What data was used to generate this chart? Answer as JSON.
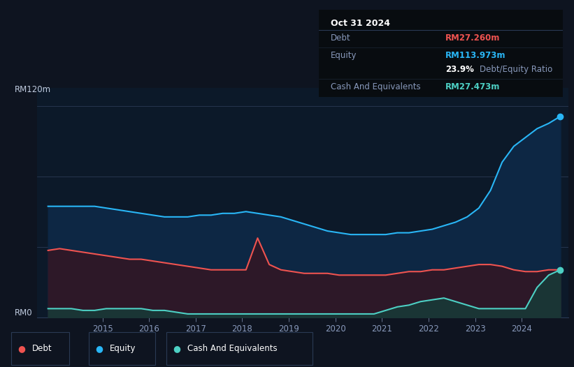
{
  "bg_color": "#0e1420",
  "chart_bg": "#0c1929",
  "tooltip": {
    "date": "Oct 31 2024",
    "debt_label": "Debt",
    "debt_value": "RM27.260m",
    "equity_label": "Equity",
    "equity_value": "RM113.973m",
    "ratio_value": "23.9%",
    "ratio_label": "Debt/Equity Ratio",
    "cash_label": "Cash And Equivalents",
    "cash_value": "RM27.473m"
  },
  "ylabel_top": "RM120m",
  "ylabel_bottom": "RM0",
  "equity_color": "#29b6f6",
  "debt_color": "#ef5350",
  "cash_color": "#4dd0c4",
  "equity_fill": "#0d2744",
  "debt_fill": "#2d1828",
  "cash_fill": "#1a3535",
  "years": [
    2013.83,
    2014.08,
    2014.33,
    2014.58,
    2014.83,
    2015.08,
    2015.33,
    2015.58,
    2015.83,
    2016.08,
    2016.33,
    2016.58,
    2016.83,
    2017.08,
    2017.33,
    2017.58,
    2017.83,
    2018.08,
    2018.33,
    2018.58,
    2018.83,
    2019.08,
    2019.33,
    2019.58,
    2019.83,
    2020.08,
    2020.33,
    2020.58,
    2020.83,
    2021.08,
    2021.33,
    2021.58,
    2021.83,
    2022.08,
    2022.33,
    2022.58,
    2022.83,
    2023.08,
    2023.33,
    2023.58,
    2023.83,
    2024.08,
    2024.33,
    2024.58,
    2024.83
  ],
  "equity": [
    63,
    63,
    63,
    63,
    63,
    62,
    61,
    60,
    59,
    58,
    57,
    57,
    57,
    58,
    58,
    59,
    59,
    60,
    59,
    58,
    57,
    55,
    53,
    51,
    49,
    48,
    47,
    47,
    47,
    47,
    48,
    48,
    49,
    50,
    52,
    54,
    57,
    62,
    72,
    88,
    97,
    102,
    107,
    110,
    114
  ],
  "debt": [
    38,
    39,
    38,
    37,
    36,
    35,
    34,
    33,
    33,
    32,
    31,
    30,
    29,
    28,
    27,
    27,
    27,
    27,
    45,
    30,
    27,
    26,
    25,
    25,
    25,
    24,
    24,
    24,
    24,
    24,
    25,
    26,
    26,
    27,
    27,
    28,
    29,
    30,
    30,
    29,
    27,
    26,
    26,
    27,
    27
  ],
  "cash": [
    5,
    5,
    5,
    4,
    4,
    5,
    5,
    5,
    5,
    4,
    4,
    3,
    2,
    2,
    2,
    2,
    2,
    2,
    2,
    2,
    2,
    2,
    2,
    2,
    2,
    2,
    2,
    2,
    2,
    4,
    6,
    7,
    9,
    10,
    11,
    9,
    7,
    5,
    5,
    5,
    5,
    5,
    17,
    24,
    27
  ],
  "x_ticks": [
    2015,
    2016,
    2017,
    2018,
    2019,
    2020,
    2021,
    2022,
    2023,
    2024
  ],
  "ylim": [
    0,
    130
  ],
  "xlim": [
    2013.6,
    2025.0
  ]
}
